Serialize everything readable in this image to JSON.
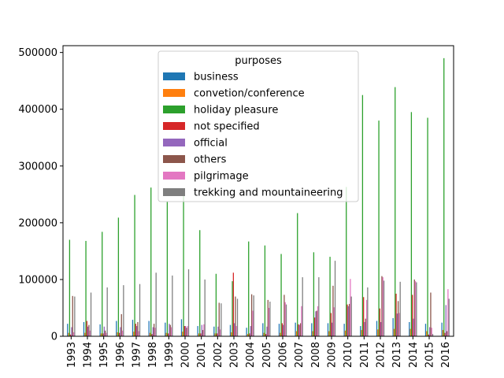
{
  "chart_data": {
    "type": "bar",
    "legend_title": "purposes",
    "legend_position": "top-center",
    "grid": false,
    "ylim": [
      0,
      512000
    ],
    "yticks": [
      0,
      100000,
      200000,
      300000,
      400000,
      500000
    ],
    "categories": [
      "1993",
      "1994",
      "1995",
      "1996",
      "1997",
      "1998",
      "1999",
      "2000",
      "2001",
      "2002",
      "2003",
      "2004",
      "2005",
      "2006",
      "2007",
      "2008",
      "2009",
      "2010",
      "2011",
      "2012",
      "2013",
      "2014",
      "2015",
      "2016"
    ],
    "series": [
      {
        "name": "business",
        "color": "#1f77b4",
        "values": [
          22000,
          25000,
          21000,
          27000,
          29000,
          27000,
          24000,
          30000,
          18000,
          17000,
          20000,
          15000,
          23000,
          22000,
          24000,
          23000,
          23000,
          22000,
          18000,
          27000,
          32000,
          25000,
          22000,
          24000
        ]
      },
      {
        "name": "convetion/conference",
        "color": "#ff7f0e",
        "values": [
          6000,
          6000,
          5000,
          7000,
          8000,
          6000,
          6000,
          8000,
          5000,
          5000,
          7000,
          4000,
          6000,
          6000,
          9000,
          9000,
          9000,
          10000,
          11000,
          12000,
          13000,
          13000,
          9000,
          11000
        ]
      },
      {
        "name": "holiday pleasure",
        "color": "#2ca02c",
        "values": [
          170000,
          168000,
          184000,
          209000,
          249000,
          262000,
          237000,
          255000,
          187000,
          110000,
          97000,
          167000,
          160000,
          145000,
          217000,
          148000,
          140000,
          263000,
          425000,
          380000,
          439000,
          395000,
          385000,
          490000
        ]
      },
      {
        "name": "not specified",
        "color": "#d62728",
        "values": [
          3000,
          27000,
          5000,
          6000,
          22000,
          4000,
          5000,
          18000,
          5000,
          5000,
          112000,
          5000,
          4000,
          23000,
          21000,
          33000,
          41000,
          56000,
          69000,
          49000,
          75000,
          73000,
          3000,
          6000
        ]
      },
      {
        "name": "official",
        "color": "#9467bd",
        "values": [
          16000,
          17000,
          17000,
          16000,
          18000,
          16000,
          22000,
          18000,
          20000,
          17000,
          23000,
          18000,
          17000,
          20000,
          20000,
          44000,
          24000,
          53000,
          25000,
          25000,
          40000,
          31000,
          16000,
          55000
        ]
      },
      {
        "name": "others",
        "color": "#8c564b",
        "values": [
          71000,
          20000,
          10000,
          39000,
          25000,
          22000,
          20000,
          15000,
          11000,
          59000,
          70000,
          74000,
          64000,
          73000,
          23000,
          45000,
          89000,
          57000,
          31000,
          106000,
          62000,
          100000,
          77000,
          9000
        ]
      },
      {
        "name": "pilgrimage",
        "color": "#e377c2",
        "values": [
          7000,
          10000,
          6000,
          10000,
          9000,
          15000,
          16000,
          18000,
          21000,
          12000,
          18000,
          45000,
          50000,
          60000,
          53000,
          53000,
          51000,
          101000,
          64000,
          104000,
          41000,
          97000,
          15000,
          83000
        ]
      },
      {
        "name": "trekking and mountaineering",
        "color": "#7f7f7f",
        "values": [
          70000,
          77000,
          86000,
          90000,
          92000,
          112000,
          107000,
          118000,
          100000,
          58000,
          66000,
          72000,
          61000,
          56000,
          104000,
          104000,
          133000,
          70000,
          86000,
          98000,
          96000,
          95000,
          4000,
          66000
        ]
      }
    ]
  }
}
